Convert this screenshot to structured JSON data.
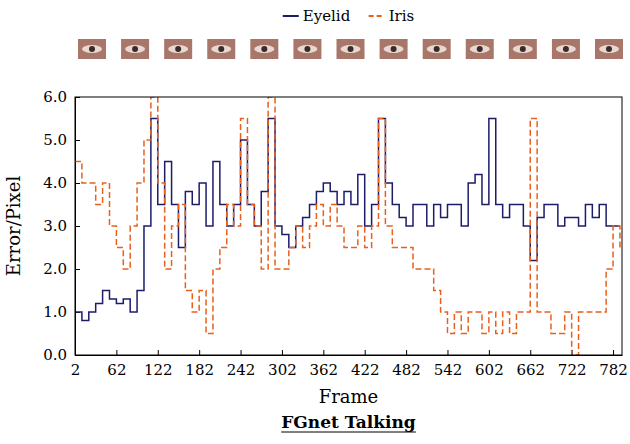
{
  "chart_data": {
    "type": "line",
    "title": "FGnet Talking",
    "x_label": "Frame",
    "y_label": "Error/Pixel",
    "legend": "top",
    "xlim": [
      2,
      795
    ],
    "xticks": [
      2,
      62,
      122,
      182,
      242,
      302,
      362,
      422,
      482,
      542,
      602,
      662,
      722,
      782
    ],
    "ylim": [
      0,
      6
    ],
    "yticks": [
      {
        "value": 0,
        "label": "0.0"
      },
      {
        "value": 1,
        "label": "1.0"
      },
      {
        "value": 2,
        "label": "2.0"
      },
      {
        "value": 3,
        "label": "3.0"
      },
      {
        "value": 4,
        "label": "4.0"
      },
      {
        "value": 5,
        "label": "5.0"
      },
      {
        "value": 6,
        "label": "6.0"
      }
    ],
    "x": [
      2,
      12,
      22,
      32,
      42,
      52,
      62,
      72,
      82,
      92,
      102,
      112,
      122,
      132,
      142,
      152,
      162,
      172,
      182,
      192,
      202,
      212,
      222,
      232,
      242,
      252,
      262,
      272,
      282,
      292,
      302,
      312,
      322,
      332,
      342,
      352,
      362,
      372,
      382,
      392,
      402,
      412,
      422,
      432,
      442,
      452,
      462,
      472,
      482,
      492,
      502,
      512,
      522,
      532,
      542,
      552,
      562,
      572,
      582,
      592,
      602,
      612,
      622,
      632,
      642,
      652,
      662,
      672,
      682,
      692,
      702,
      712,
      722,
      732,
      742,
      752,
      762,
      772,
      782,
      792
    ],
    "series": [
      {
        "name": "Eyelid",
        "color": "#1c1c6b",
        "line_style": "solid",
        "values": [
          1.0,
          0.8,
          1.0,
          1.2,
          1.5,
          1.3,
          1.2,
          1.3,
          1.0,
          1.5,
          3.0,
          5.5,
          3.5,
          4.5,
          3.5,
          2.5,
          3.8,
          3.5,
          4.0,
          3.0,
          4.5,
          3.5,
          3.0,
          3.5,
          5.0,
          3.5,
          3.0,
          3.8,
          5.5,
          3.0,
          2.8,
          2.5,
          3.0,
          3.2,
          3.5,
          3.8,
          4.0,
          3.8,
          3.5,
          3.8,
          3.5,
          4.2,
          3.0,
          3.5,
          5.5,
          4.0,
          3.5,
          3.2,
          3.0,
          3.5,
          3.5,
          3.0,
          3.5,
          3.2,
          3.5,
          3.5,
          3.0,
          4.0,
          4.2,
          3.5,
          5.5,
          3.5,
          3.2,
          3.5,
          3.5,
          3.0,
          2.2,
          3.2,
          3.5,
          3.5,
          3.0,
          3.2,
          3.2,
          3.0,
          3.5,
          3.2,
          3.5,
          3.0,
          3.0,
          3.0
        ]
      },
      {
        "name": "Iris",
        "color": "#e8601c",
        "line_style": "dashed",
        "values": [
          4.5,
          4.0,
          4.0,
          3.5,
          4.0,
          3.0,
          2.5,
          2.0,
          3.0,
          4.0,
          5.0,
          6.0,
          4.0,
          2.0,
          3.0,
          3.5,
          1.5,
          1.0,
          1.5,
          0.5,
          2.0,
          2.5,
          3.5,
          3.0,
          5.5,
          3.5,
          3.0,
          2.0,
          6.0,
          2.0,
          2.0,
          2.5,
          3.0,
          2.5,
          3.0,
          3.5,
          3.0,
          3.5,
          3.0,
          2.5,
          2.5,
          3.0,
          2.5,
          3.0,
          5.5,
          3.0,
          2.5,
          2.5,
          2.5,
          2.0,
          2.0,
          2.0,
          1.5,
          1.0,
          0.5,
          1.0,
          0.5,
          1.0,
          1.0,
          0.5,
          1.0,
          0.5,
          1.0,
          0.5,
          1.0,
          1.0,
          5.5,
          1.0,
          1.0,
          0.5,
          0.5,
          1.0,
          0.0,
          1.0,
          1.0,
          1.0,
          1.0,
          2.0,
          3.0,
          2.5
        ]
      }
    ]
  }
}
